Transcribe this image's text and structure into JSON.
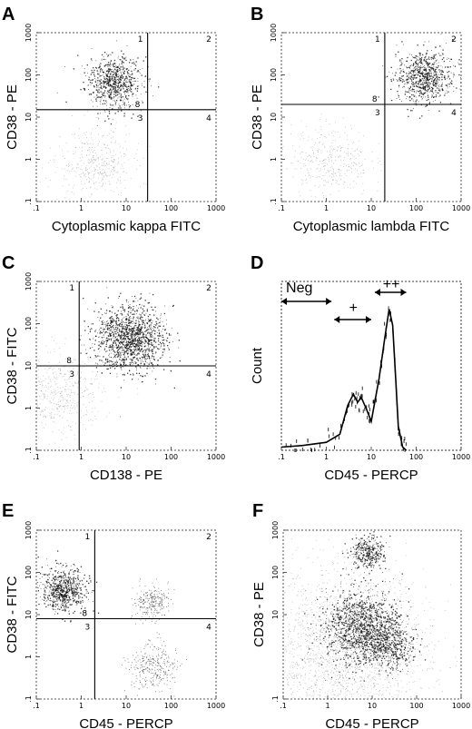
{
  "chart_data": [
    {
      "panel": "A",
      "type": "scatter",
      "log_scale": true,
      "xlabel": "Cytoplasmic kappa FITC",
      "ylabel": "CD38 - PE",
      "xlim": [
        0.1,
        1000
      ],
      "ylim": [
        0.1,
        1000
      ],
      "x_ticks": [
        ".1",
        "1",
        "10",
        "100",
        "1000"
      ],
      "y_ticks": [
        "1000",
        "100",
        "10",
        "1",
        ".1"
      ],
      "quadrant_labels": [
        "1",
        "2",
        "3",
        "4"
      ],
      "gate_label": "8",
      "gate": {
        "x": 30,
        "y": 15
      },
      "populations": [
        {
          "name": "",
          "x": 5,
          "y": 70,
          "spread": 0.28,
          "count": 750,
          "density": "high"
        },
        {
          "name": "",
          "x": 2,
          "y": 0.8,
          "spread": 0.38,
          "count": 400,
          "density": "low"
        }
      ]
    },
    {
      "panel": "B",
      "type": "scatter",
      "log_scale": true,
      "xlabel": "Cytoplasmic lambda FITC",
      "ylabel": "CD38 - PE",
      "xlim": [
        0.1,
        1000
      ],
      "ylim": [
        0.1,
        1000
      ],
      "x_ticks": [
        ".1",
        "1",
        "10",
        "100",
        "1000"
      ],
      "y_ticks": [
        "1000",
        "100",
        "10",
        "1",
        ".1"
      ],
      "quadrant_labels": [
        "1",
        "2",
        "3",
        "4"
      ],
      "gate_label": "8",
      "gate": {
        "x": 20,
        "y": 20
      },
      "populations": [
        {
          "name": "",
          "x": 150,
          "y": 90,
          "spread": 0.28,
          "count": 800,
          "density": "high"
        },
        {
          "name": "",
          "x": 1.2,
          "y": 1,
          "spread": 0.4,
          "count": 350,
          "density": "low"
        }
      ]
    },
    {
      "panel": "C",
      "type": "scatter",
      "log_scale": true,
      "xlabel": "CD138 - PE",
      "ylabel": "CD38 - FITC",
      "xlim": [
        0.1,
        1000
      ],
      "ylim": [
        0.1,
        1000
      ],
      "x_ticks": [
        ".1",
        "1",
        "10",
        "100",
        "1000"
      ],
      "y_ticks": [
        "1000",
        "100",
        "10",
        "1",
        ".1"
      ],
      "quadrant_labels": [
        "1",
        "2",
        "3",
        "4"
      ],
      "gate_label": "8",
      "gate": {
        "x": 0.9,
        "y": 10
      },
      "populations": [
        {
          "name": "",
          "x": 12,
          "y": 45,
          "spread": 0.35,
          "count": 1400,
          "density": "high"
        },
        {
          "name": "",
          "x": 0.3,
          "y": 2,
          "spread": 0.45,
          "count": 500,
          "density": "low"
        }
      ]
    },
    {
      "panel": "D",
      "type": "line",
      "log_scale_x": true,
      "xlabel": "CD45 - PERCP",
      "ylabel": "Count",
      "xlim": [
        0.1,
        1000
      ],
      "x_ticks": [
        ".1",
        "1",
        "10",
        "100",
        "1000"
      ],
      "annotations": [
        "Neg",
        "+",
        "++"
      ],
      "x": [
        0.1,
        0.3,
        1,
        2,
        3,
        4,
        5,
        6,
        8,
        10,
        15,
        20,
        25,
        30,
        35,
        40,
        50,
        60
      ],
      "y": [
        2,
        3,
        5,
        10,
        28,
        35,
        30,
        33,
        25,
        18,
        45,
        70,
        88,
        78,
        45,
        15,
        2,
        0
      ]
    },
    {
      "panel": "E",
      "type": "scatter",
      "log_scale": true,
      "xlabel": "CD45 - PERCP",
      "ylabel": "CD38 - FITC",
      "xlim": [
        0.1,
        1000
      ],
      "ylim": [
        0.1,
        1000
      ],
      "x_ticks": [
        ".1",
        "1",
        "10",
        "100",
        "1000"
      ],
      "y_ticks": [
        "1000",
        "100",
        "10",
        "1",
        ".1"
      ],
      "quadrant_labels": [
        "1",
        "2",
        "3",
        "4"
      ],
      "gate_label": "8",
      "gate": {
        "x": 2,
        "y": 8
      },
      "populations": [
        {
          "name": "",
          "x": 0.4,
          "y": 40,
          "spread": 0.22,
          "count": 700,
          "density": "high"
        },
        {
          "name": "",
          "x": 35,
          "y": 20,
          "spread": 0.18,
          "count": 250,
          "density": "mid"
        },
        {
          "name": "",
          "x": 40,
          "y": 0.6,
          "spread": 0.25,
          "count": 300,
          "density": "mid"
        }
      ]
    },
    {
      "panel": "F",
      "type": "scatter",
      "log_scale": true,
      "xlabel": "CD45 - PERCP",
      "ylabel": "CD38 - PE",
      "xlim": [
        0.1,
        1000
      ],
      "ylim": [
        0.1,
        1000
      ],
      "x_ticks": [
        ".1",
        "1",
        "10",
        "100",
        "1000"
      ],
      "y_ticks": [
        "1000",
        "100",
        "10",
        ".1"
      ],
      "quadrant_labels": [],
      "gate_label": "",
      "gate": null,
      "populations": [
        {
          "name": "",
          "x": 8,
          "y": 300,
          "spread": 0.18,
          "count": 350,
          "density": "high"
        },
        {
          "name": "",
          "x": 6,
          "y": 5,
          "spread": 0.4,
          "count": 1400,
          "density": "high"
        },
        {
          "name": "",
          "x": 25,
          "y": 2,
          "spread": 0.25,
          "count": 450,
          "density": "high"
        },
        {
          "name": "",
          "x": 2,
          "y": 1,
          "spread": 0.9,
          "count": 2200,
          "density": "low"
        }
      ]
    }
  ]
}
